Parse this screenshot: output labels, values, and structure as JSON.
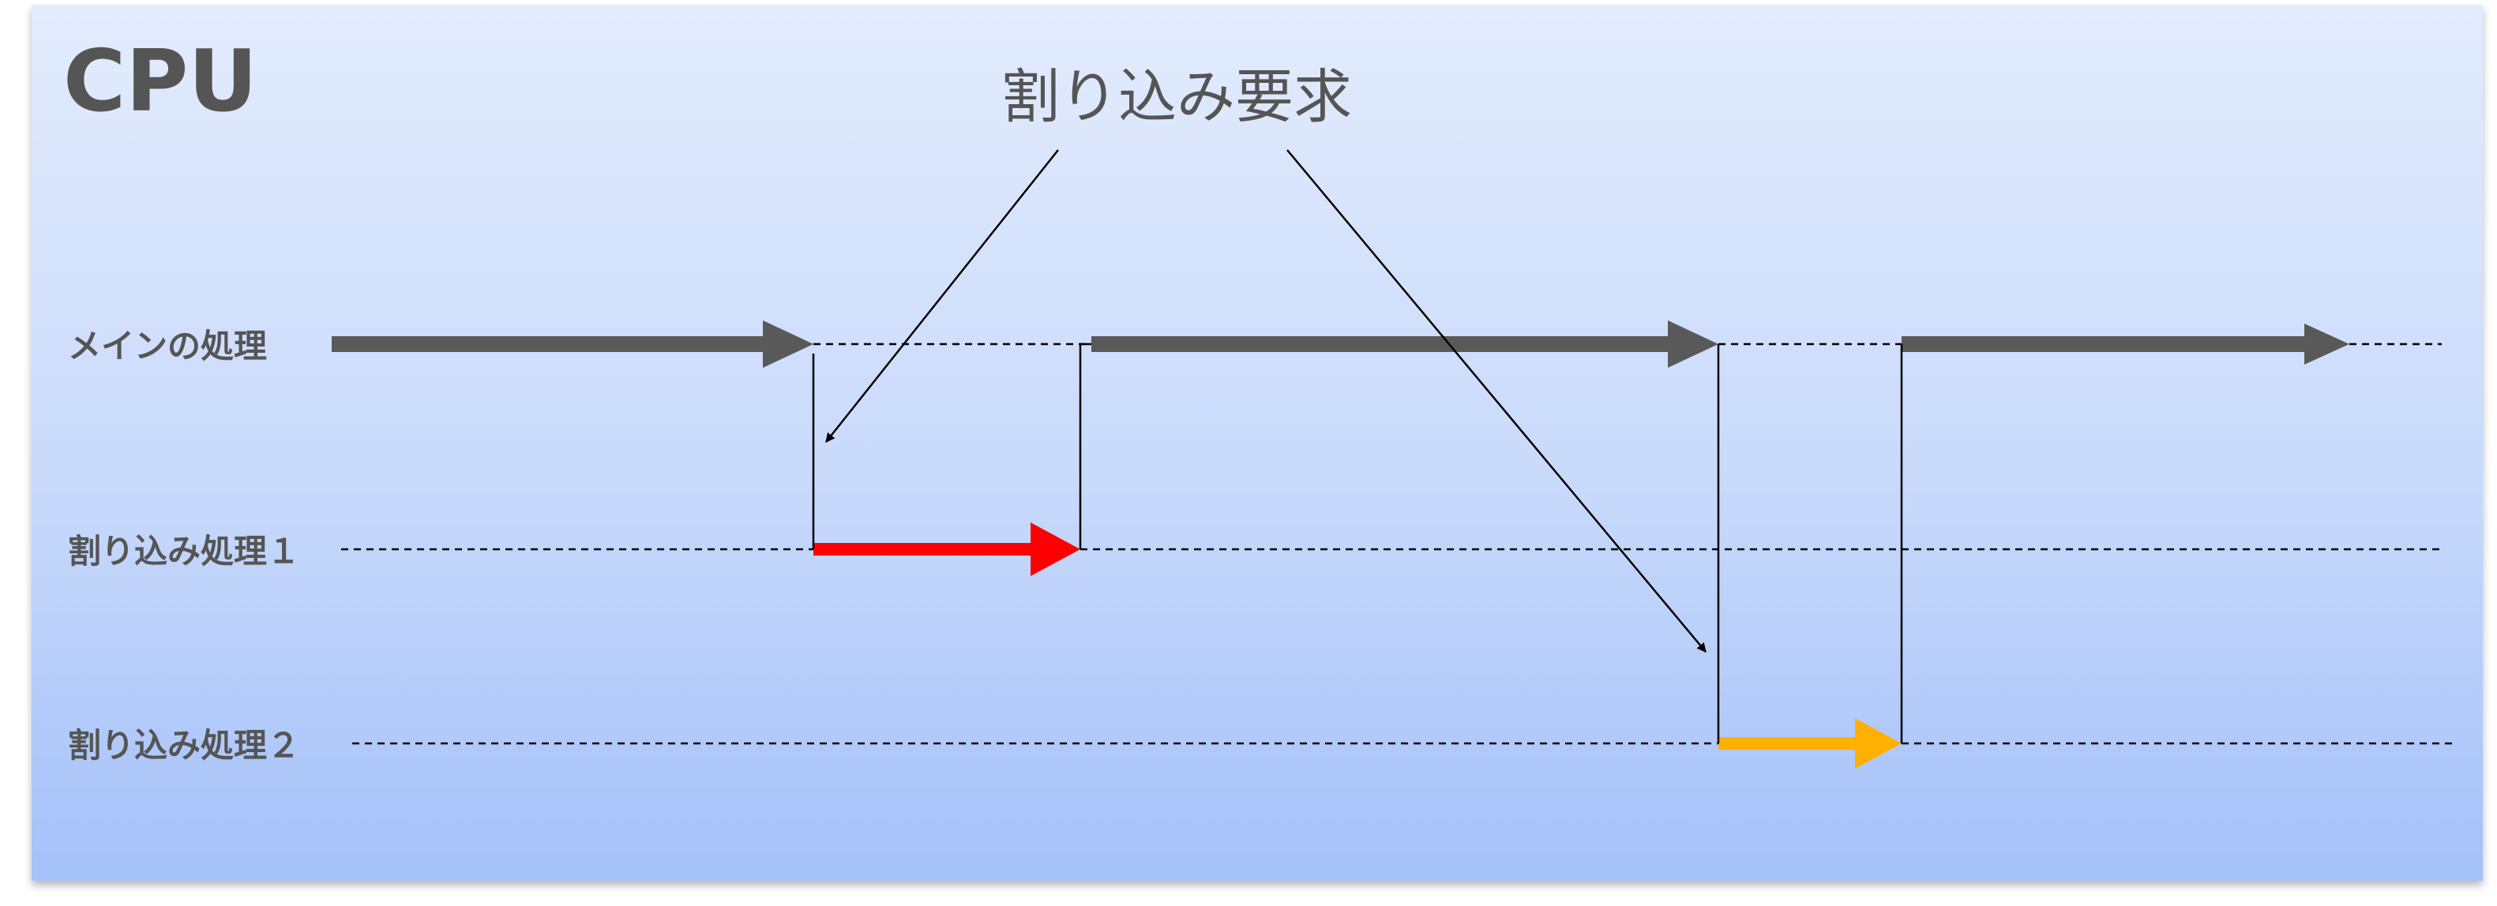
{
  "title": "CPU",
  "callout": "割り込み要求",
  "lanes": [
    {
      "label": "メインの処理"
    },
    {
      "label": "割り込み処理１"
    },
    {
      "label": "割り込み処理２"
    }
  ],
  "colors": {
    "main_flow": "#595959",
    "interrupt_1": "#ff0000",
    "interrupt_2": "#ffb000",
    "connector": "#000000",
    "text": "#555555",
    "background_top": "#e3ecfd",
    "background_bottom": "#a4c1f9"
  }
}
